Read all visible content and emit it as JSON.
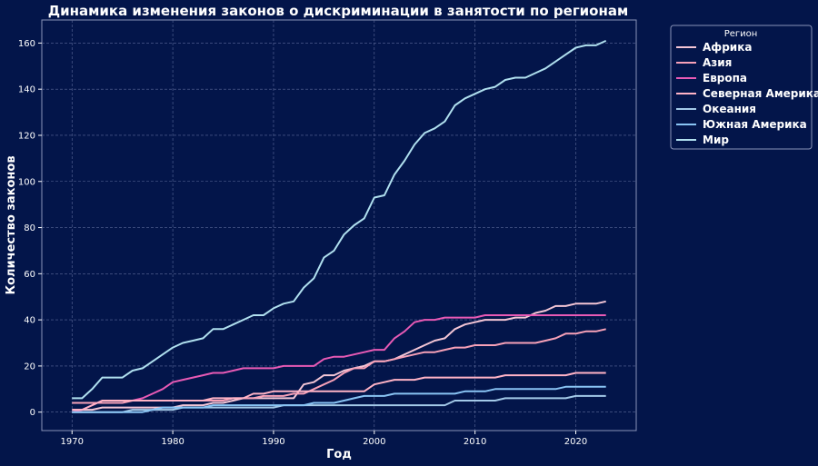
{
  "chart_data": {
    "type": "line",
    "title": "Динамика изменения законов о дискриминации в занятости по регионам",
    "xlabel": "Год",
    "ylabel": "Количество законов",
    "xlim": [
      1967,
      2026
    ],
    "ylim": [
      -8,
      170
    ],
    "x_ticks": [
      1970,
      1980,
      1990,
      2000,
      2010,
      2020
    ],
    "y_ticks": [
      0,
      20,
      40,
      60,
      80,
      100,
      120,
      140,
      160
    ],
    "grid": true,
    "legend": {
      "title": "Регион",
      "placement": "outside-top-right"
    },
    "x": [
      1970,
      1971,
      1972,
      1973,
      1974,
      1975,
      1976,
      1977,
      1978,
      1979,
      1980,
      1981,
      1982,
      1983,
      1984,
      1985,
      1986,
      1987,
      1988,
      1989,
      1990,
      1991,
      1992,
      1993,
      1994,
      1995,
      1996,
      1997,
      1998,
      1999,
      2000,
      2001,
      2002,
      2003,
      2004,
      2005,
      2006,
      2007,
      2008,
      2009,
      2010,
      2011,
      2012,
      2013,
      2014,
      2015,
      2016,
      2017,
      2018,
      2019,
      2020,
      2021,
      2022,
      2023
    ],
    "series": [
      {
        "name": "Африка",
        "color": "#f4c6d6",
        "values": [
          1,
          1,
          1,
          2,
          2,
          2,
          2,
          2,
          2,
          2,
          2,
          3,
          3,
          3,
          4,
          4,
          5,
          6,
          6,
          6,
          6,
          6,
          6,
          12,
          13,
          16,
          16,
          18,
          19,
          20,
          22,
          22,
          23,
          25,
          27,
          29,
          31,
          32,
          36,
          38,
          39,
          40,
          40,
          40,
          41,
          41,
          43,
          44,
          46,
          46,
          47,
          47,
          47,
          48
        ]
      },
      {
        "name": "Азия",
        "color": "#f7a1b8",
        "values": [
          4,
          4,
          4,
          4,
          4,
          4,
          5,
          5,
          5,
          5,
          5,
          5,
          5,
          5,
          5,
          5,
          6,
          6,
          6,
          7,
          7,
          7,
          8,
          8,
          10,
          12,
          14,
          17,
          19,
          19,
          22,
          22,
          23,
          24,
          25,
          26,
          26,
          27,
          28,
          28,
          29,
          29,
          29,
          30,
          30,
          30,
          30,
          31,
          32,
          34,
          34,
          35,
          35,
          36
        ]
      },
      {
        "name": "Европа",
        "color": "#e85ab5",
        "values": [
          0,
          1,
          3,
          5,
          5,
          5,
          5,
          6,
          8,
          10,
          13,
          14,
          15,
          16,
          17,
          17,
          18,
          19,
          19,
          19,
          19,
          20,
          20,
          20,
          20,
          23,
          24,
          24,
          25,
          26,
          27,
          27,
          32,
          35,
          39,
          40,
          40,
          41,
          41,
          41,
          41,
          42,
          42,
          42,
          42,
          42,
          42,
          42,
          42,
          42,
          42,
          42,
          42,
          42
        ]
      },
      {
        "name": "Северная Америка",
        "color": "#ffb3c6",
        "values": [
          1,
          1,
          3,
          5,
          5,
          5,
          5,
          5,
          5,
          5,
          5,
          5,
          5,
          5,
          6,
          6,
          6,
          6,
          8,
          8,
          9,
          9,
          9,
          9,
          9,
          9,
          9,
          9,
          9,
          9,
          12,
          13,
          14,
          14,
          14,
          15,
          15,
          15,
          15,
          15,
          15,
          15,
          15,
          16,
          16,
          16,
          16,
          16,
          16,
          16,
          17,
          17,
          17,
          17
        ]
      },
      {
        "name": "Океания",
        "color": "#a3c9e8",
        "values": [
          0,
          0,
          0,
          0,
          0,
          0,
          1,
          1,
          1,
          1,
          1,
          2,
          2,
          2,
          2,
          2,
          2,
          2,
          2,
          2,
          2,
          3,
          3,
          3,
          3,
          3,
          3,
          3,
          3,
          3,
          3,
          3,
          3,
          3,
          3,
          3,
          3,
          3,
          5,
          5,
          5,
          5,
          5,
          6,
          6,
          6,
          6,
          6,
          6,
          6,
          7,
          7,
          7,
          7
        ]
      },
      {
        "name": "Южная Америка",
        "color": "#89c4f4",
        "values": [
          0,
          0,
          0,
          0,
          0,
          0,
          0,
          0,
          1,
          2,
          2,
          2,
          2,
          2,
          3,
          3,
          3,
          3,
          3,
          3,
          3,
          3,
          3,
          3,
          4,
          4,
          4,
          5,
          6,
          7,
          7,
          7,
          8,
          8,
          8,
          8,
          8,
          8,
          8,
          9,
          9,
          9,
          10,
          10,
          10,
          10,
          10,
          10,
          10,
          11,
          11,
          11,
          11,
          11
        ]
      },
      {
        "name": "Мир",
        "color": "#b0e0ef",
        "values": [
          6,
          6,
          10,
          15,
          15,
          15,
          18,
          19,
          22,
          25,
          28,
          30,
          31,
          32,
          36,
          36,
          38,
          40,
          42,
          42,
          45,
          47,
          48,
          54,
          58,
          67,
          70,
          77,
          81,
          84,
          93,
          94,
          103,
          109,
          116,
          121,
          123,
          126,
          133,
          136,
          138,
          140,
          141,
          144,
          145,
          145,
          147,
          149,
          152,
          155,
          158,
          159,
          159,
          161
        ]
      }
    ]
  }
}
